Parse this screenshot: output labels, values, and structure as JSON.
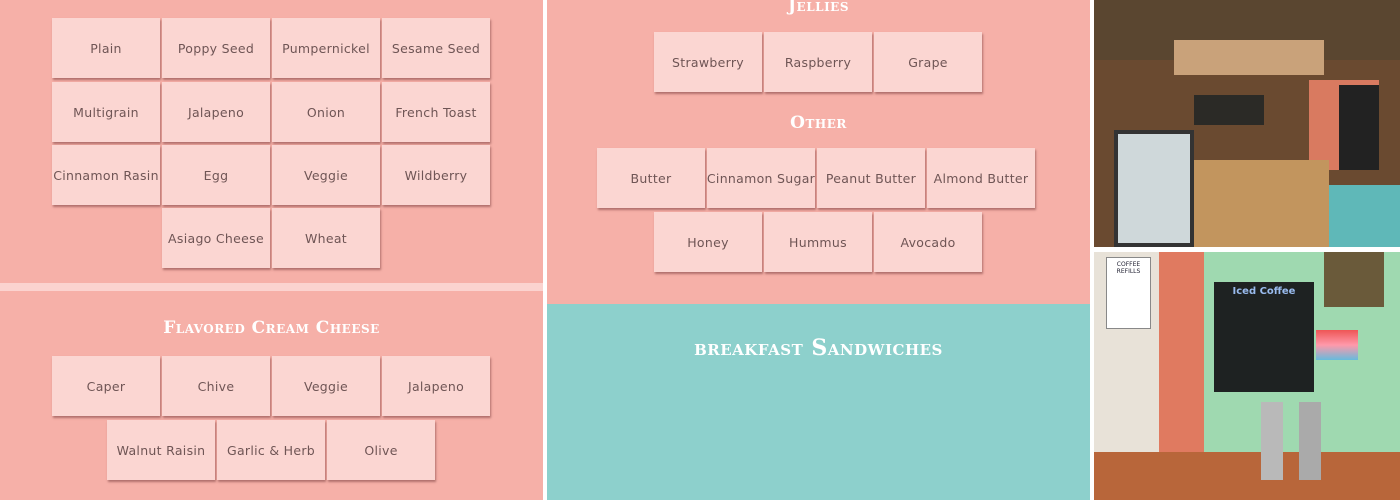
{
  "bagels": {
    "items": [
      "Plain",
      "Poppy Seed",
      "Pumpernickel",
      "Sesame Seed",
      "Multigrain",
      "Jalapeno",
      "Onion",
      "French Toast",
      "Cinnamon Rasin",
      "Egg",
      "Veggie",
      "Wildberry",
      "Asiago Cheese",
      "Wheat"
    ]
  },
  "cream_cheese": {
    "title": "Flavored Cream Cheese",
    "items": [
      "Caper",
      "Chive",
      "Veggie",
      "Jalapeno",
      "Walnut Raisin",
      "Garlic & Herb",
      "Olive"
    ]
  },
  "jellies": {
    "title": "Jellies",
    "items": [
      "Strawberry",
      "Raspberry",
      "Grape"
    ]
  },
  "other": {
    "title": "Other",
    "items": [
      "Butter",
      "Cinnamon Sugar",
      "Peanut Butter",
      "Almond Butter",
      "Honey",
      "Hummus",
      "Avocado"
    ]
  },
  "sandwiches": {
    "title": "breakfast Sandwiches"
  },
  "photos": {
    "top": "cafe-counter-photo",
    "bottom": "coffee-station-photo",
    "bottom_sign": "Iced Coffee",
    "refill_sign": "COFFEE REFILLS"
  },
  "colors": {
    "pink": "#f6b0a8",
    "tile": "#fbd6d2",
    "teal": "#8dd0cc"
  }
}
